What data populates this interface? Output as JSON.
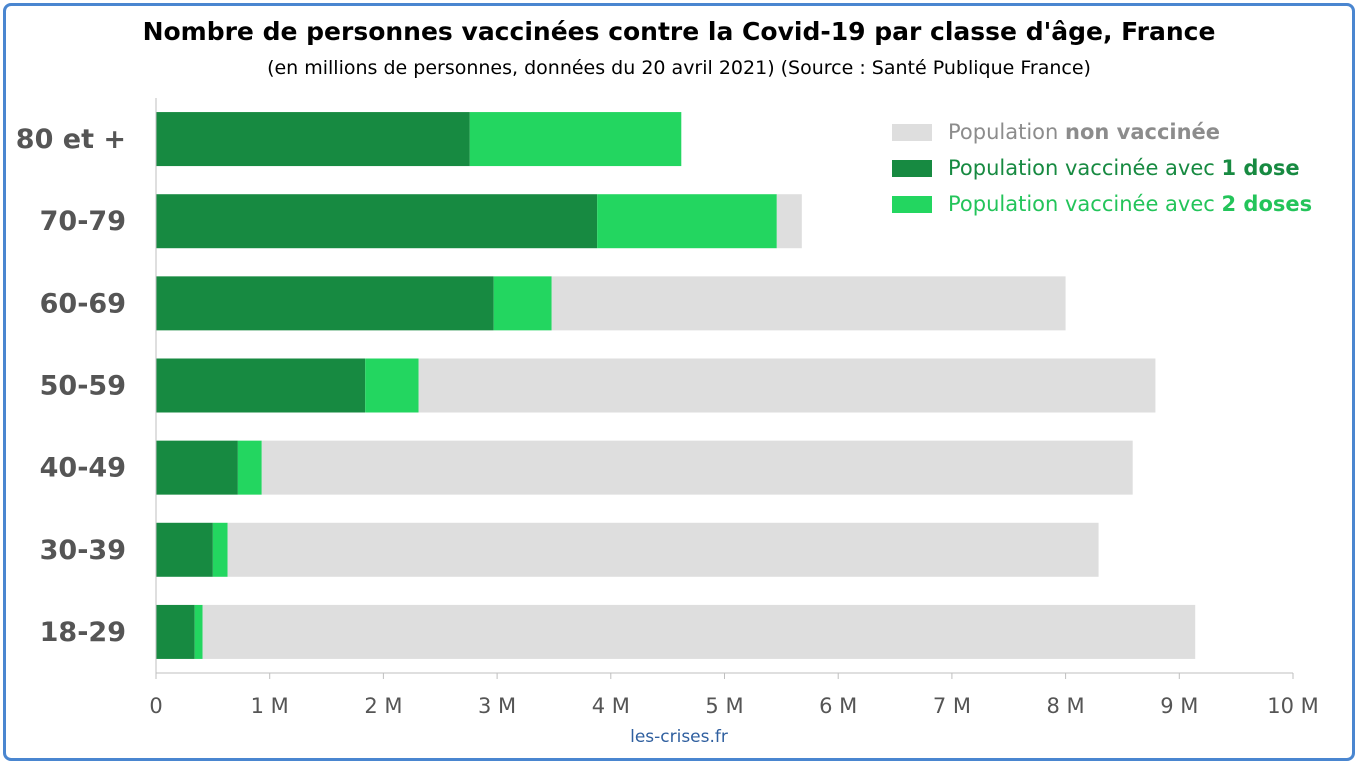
{
  "chart_data": {
    "type": "bar",
    "orientation": "horizontal",
    "stacked": true,
    "title": "Nombre de personnes vaccinées contre la Covid-19 par classe d'âge, France",
    "subtitle": "(en millions de personnes, données du 20 avril 2021) (Source : Santé Publique France)",
    "categories": [
      "80 et +",
      "70-79",
      "60-69",
      "50-59",
      "40-49",
      "30-39",
      "18-29"
    ],
    "series": [
      {
        "key": "one_dose",
        "values": [
          2.76,
          3.88,
          2.97,
          1.84,
          0.72,
          0.5,
          0.34
        ],
        "color": "#178a41"
      },
      {
        "key": "two_doses",
        "values": [
          1.86,
          1.58,
          0.51,
          0.47,
          0.21,
          0.13,
          0.07
        ],
        "color": "#23d660"
      },
      {
        "key": "non_vaccinated",
        "values": [
          0.0,
          0.22,
          4.52,
          6.48,
          7.66,
          7.66,
          8.73
        ],
        "color": "#dedede"
      }
    ],
    "xlim": [
      0,
      10
    ],
    "xticks": [
      0,
      1,
      2,
      3,
      4,
      5,
      6,
      7,
      8,
      9,
      10
    ],
    "xtick_labels": [
      "0",
      "1 M",
      "2 M",
      "3 M",
      "4 M",
      "5 M",
      "6 M",
      "7 M",
      "8 M",
      "9 M",
      "10 M"
    ],
    "grid": false,
    "legend_position": "top-right",
    "legend": [
      {
        "series": "non_vaccinated",
        "text": "Population ",
        "bold": "non vaccinée",
        "color": "#8c8c8c",
        "swatch": "#dedede"
      },
      {
        "series": "one_dose",
        "text": "Population vaccinée avec ",
        "bold": "1 dose",
        "color": "#178a41",
        "swatch": "#178a41"
      },
      {
        "series": "two_doses",
        "text": "Population vaccinée avec ",
        "bold": "2 doses",
        "color": "#23c45a",
        "swatch": "#23d660"
      }
    ],
    "source": "les-crises.fr"
  }
}
